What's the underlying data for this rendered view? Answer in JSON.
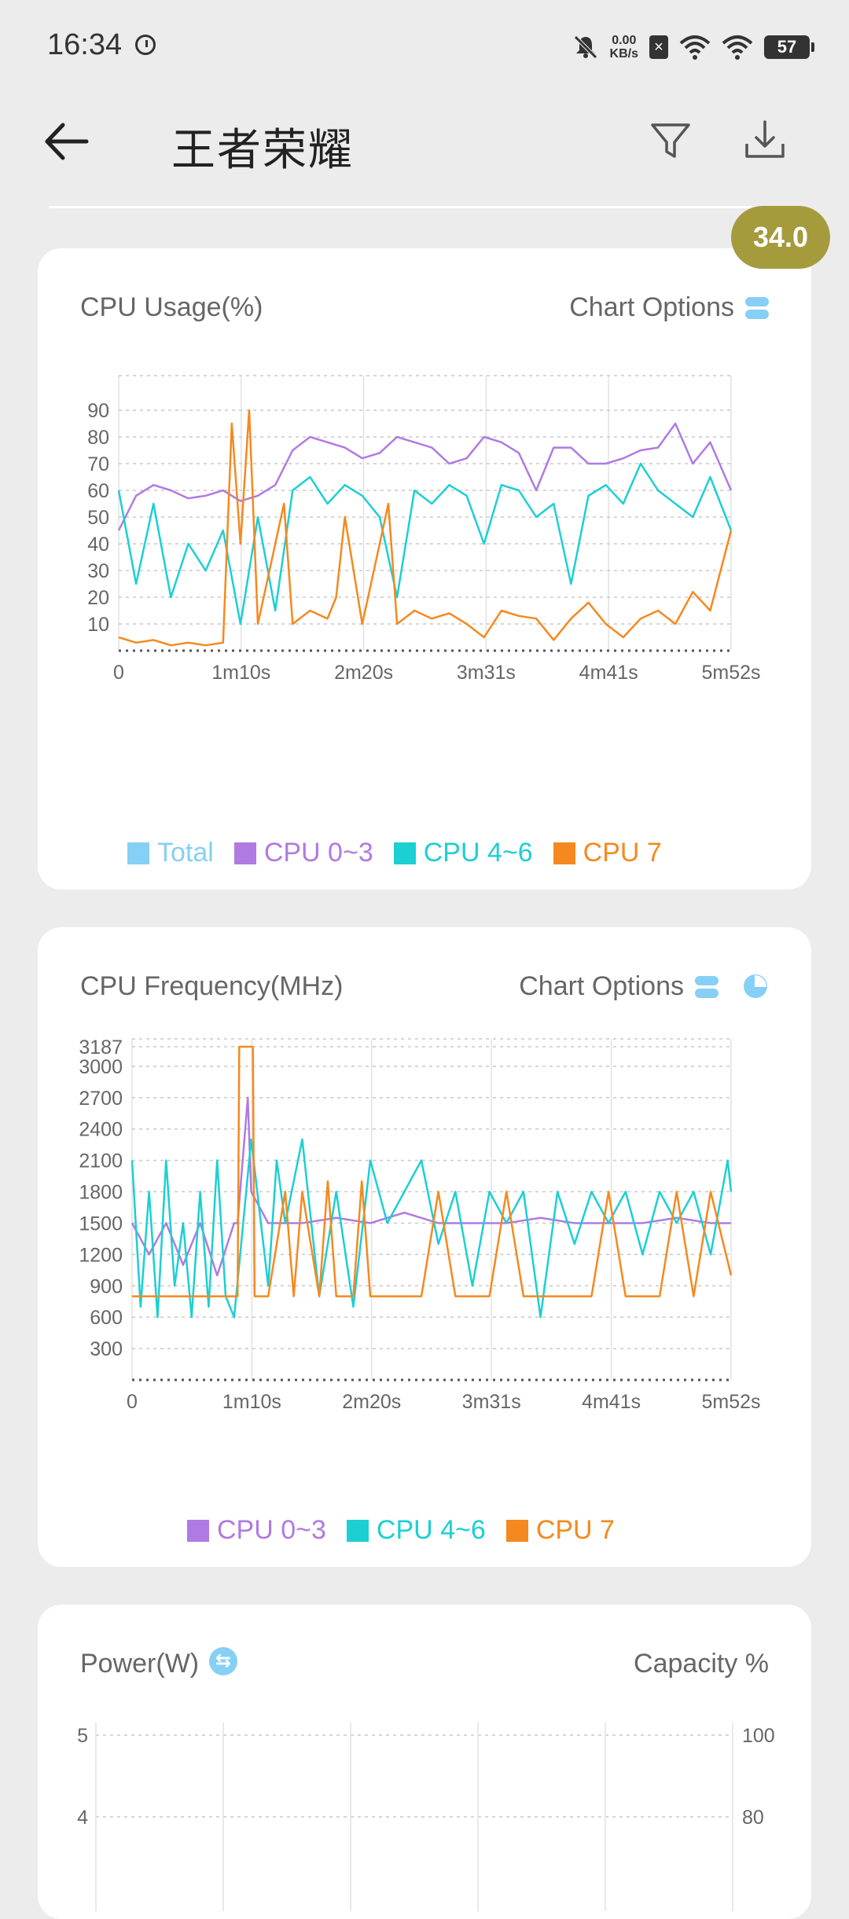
{
  "status": {
    "time": "16:34",
    "net_speed_value": "0.00",
    "net_speed_unit": "KB/s",
    "battery": "57"
  },
  "header": {
    "title": "王者荣耀"
  },
  "fps_badge": "34.0",
  "colors": {
    "total": "#86cff6",
    "cpu03": "#b07ae3",
    "cpu46": "#1ccfd3",
    "cpu7": "#f5891f"
  },
  "cards": {
    "usage": {
      "title": "CPU Usage(%)",
      "options": "Chart Options"
    },
    "freq": {
      "title": "CPU Frequency(MHz)",
      "options": "Chart Options"
    },
    "power": {
      "title": "Power(W)",
      "options": "Capacity %"
    }
  },
  "chart_data": [
    {
      "type": "line",
      "ylabel": "CPU Usage(%)",
      "yticks": [
        10,
        20,
        30,
        40,
        50,
        60,
        70,
        80,
        90
      ],
      "ylim": [
        0,
        100
      ],
      "xticks": [
        "0",
        "1m10s",
        "2m20s",
        "3m31s",
        "4m41s",
        "5m52s"
      ],
      "xlim": [
        0,
        352
      ],
      "grid": true,
      "legend": [
        "Total",
        "CPU 0~3",
        "CPU 4~6",
        "CPU 7"
      ],
      "series": [
        {
          "name": "CPU 0~3",
          "x": [
            0,
            10,
            20,
            30,
            40,
            50,
            60,
            70,
            80,
            90,
            100,
            110,
            120,
            130,
            140,
            150,
            160,
            170,
            180,
            190,
            200,
            210,
            220,
            230,
            240,
            250,
            260,
            270,
            280,
            290,
            300,
            310,
            320,
            330,
            340,
            352
          ],
          "values": [
            45,
            58,
            62,
            60,
            57,
            58,
            60,
            56,
            58,
            62,
            75,
            80,
            78,
            76,
            72,
            74,
            80,
            78,
            76,
            70,
            72,
            80,
            78,
            74,
            60,
            76,
            76,
            70,
            70,
            72,
            75,
            76,
            85,
            70,
            78,
            60
          ]
        },
        {
          "name": "CPU 4~6",
          "x": [
            0,
            10,
            20,
            30,
            40,
            50,
            60,
            70,
            80,
            90,
            100,
            110,
            120,
            130,
            140,
            150,
            160,
            170,
            180,
            190,
            200,
            210,
            220,
            230,
            240,
            250,
            260,
            270,
            280,
            290,
            300,
            310,
            320,
            330,
            340,
            352
          ],
          "values": [
            60,
            25,
            55,
            20,
            40,
            30,
            45,
            10,
            50,
            15,
            60,
            65,
            55,
            62,
            58,
            50,
            20,
            60,
            55,
            62,
            58,
            40,
            62,
            60,
            50,
            55,
            25,
            58,
            62,
            55,
            70,
            60,
            55,
            50,
            65,
            45
          ]
        },
        {
          "name": "CPU 7",
          "x": [
            0,
            10,
            20,
            30,
            40,
            50,
            60,
            65,
            70,
            75,
            80,
            95,
            100,
            110,
            120,
            125,
            130,
            140,
            150,
            155,
            160,
            170,
            180,
            190,
            200,
            210,
            220,
            230,
            240,
            250,
            260,
            270,
            280,
            290,
            300,
            310,
            320,
            330,
            340,
            352
          ],
          "values": [
            5,
            3,
            4,
            2,
            3,
            2,
            3,
            85,
            40,
            90,
            10,
            55,
            10,
            15,
            12,
            20,
            50,
            10,
            40,
            55,
            10,
            15,
            12,
            14,
            10,
            5,
            15,
            13,
            12,
            4,
            12,
            18,
            10,
            5,
            12,
            15,
            10,
            22,
            15,
            45
          ]
        }
      ]
    },
    {
      "type": "line",
      "ylabel": "CPU Frequency(MHz)",
      "yticks": [
        300,
        600,
        900,
        1200,
        1500,
        1800,
        2100,
        2400,
        2700,
        3000,
        3187
      ],
      "ylim": [
        0,
        3187
      ],
      "xticks": [
        "0",
        "1m10s",
        "2m20s",
        "3m31s",
        "4m41s",
        "5m52s"
      ],
      "xlim": [
        0,
        352
      ],
      "grid": true,
      "legend": [
        "CPU 0~3",
        "CPU 4~6",
        "CPU 7"
      ],
      "series": [
        {
          "name": "CPU 0~3",
          "x": [
            0,
            10,
            20,
            30,
            40,
            50,
            60,
            62,
            68,
            70,
            80,
            100,
            120,
            140,
            160,
            180,
            200,
            220,
            240,
            260,
            280,
            300,
            320,
            340,
            352
          ],
          "values": [
            1500,
            1200,
            1500,
            1100,
            1500,
            1000,
            1500,
            1500,
            2700,
            1800,
            1500,
            1500,
            1550,
            1500,
            1600,
            1500,
            1500,
            1500,
            1550,
            1500,
            1500,
            1500,
            1550,
            1500,
            1500
          ]
        },
        {
          "name": "CPU 4~6",
          "x": [
            0,
            5,
            10,
            15,
            20,
            25,
            30,
            35,
            40,
            45,
            50,
            55,
            60,
            70,
            80,
            85,
            90,
            100,
            110,
            120,
            130,
            140,
            150,
            160,
            170,
            180,
            190,
            200,
            210,
            220,
            230,
            240,
            250,
            260,
            270,
            280,
            290,
            300,
            310,
            320,
            330,
            340,
            350,
            352
          ],
          "values": [
            2100,
            700,
            1800,
            600,
            2100,
            900,
            1500,
            600,
            1800,
            700,
            2100,
            800,
            600,
            2300,
            900,
            2100,
            1500,
            2300,
            800,
            1800,
            700,
            2100,
            1500,
            1800,
            2100,
            1300,
            1800,
            900,
            1800,
            1500,
            1800,
            600,
            1800,
            1300,
            1800,
            1500,
            1800,
            1200,
            1800,
            1500,
            1800,
            1200,
            2100,
            1800
          ]
        },
        {
          "name": "CPU 7",
          "x": [
            0,
            20,
            40,
            60,
            62,
            63,
            71,
            72,
            80,
            90,
            95,
            100,
            110,
            115,
            120,
            130,
            135,
            140,
            150,
            160,
            170,
            180,
            190,
            200,
            210,
            220,
            230,
            240,
            250,
            260,
            270,
            280,
            290,
            300,
            310,
            320,
            330,
            340,
            352
          ],
          "values": [
            800,
            800,
            800,
            800,
            800,
            3187,
            3187,
            800,
            800,
            1800,
            800,
            1800,
            800,
            1900,
            800,
            800,
            1900,
            800,
            800,
            800,
            800,
            1800,
            800,
            800,
            800,
            1800,
            800,
            800,
            800,
            800,
            800,
            1800,
            800,
            800,
            800,
            1800,
            800,
            1800,
            1000
          ]
        }
      ]
    },
    {
      "type": "line",
      "ylabel": "Power(W)",
      "y2label": "Capacity %",
      "yticks": [
        4,
        5
      ],
      "y2ticks": [
        80,
        100
      ],
      "grid": true,
      "series": []
    }
  ]
}
